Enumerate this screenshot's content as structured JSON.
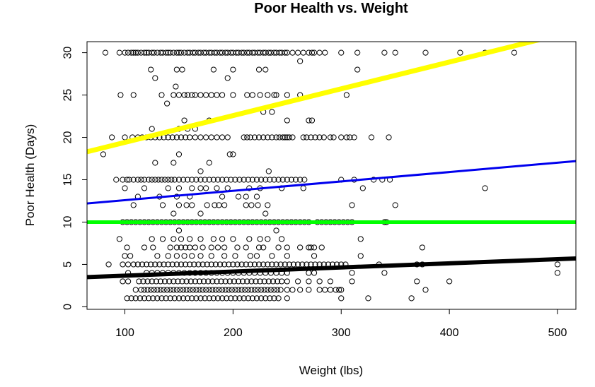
{
  "chart_data": {
    "type": "scatter",
    "title": "Poor Health vs. Weight",
    "xlabel": "Weight (lbs)",
    "ylabel": "Poor Health (Days)",
    "xlim": [
      65,
      517
    ],
    "ylim": [
      -0.3,
      31.3
    ],
    "xticks": [
      100,
      200,
      300,
      400,
      500
    ],
    "yticks": [
      0,
      5,
      10,
      15,
      20,
      25,
      30
    ],
    "grid": false,
    "legend": "none",
    "point_series": [
      {
        "y": 30,
        "x": [
          82,
          95,
          100,
          103,
          106,
          108,
          110,
          112,
          115,
          118,
          120,
          122,
          125,
          127,
          130,
          133,
          135,
          138,
          140,
          142,
          145,
          148,
          150,
          152,
          155,
          158,
          160,
          163,
          165,
          168,
          170,
          173,
          175,
          178,
          180,
          183,
          185,
          188,
          190,
          193,
          195,
          198,
          200,
          203,
          205,
          208,
          210,
          213,
          215,
          218,
          220,
          223,
          225,
          228,
          230,
          233,
          235,
          238,
          240,
          243,
          245,
          248,
          250,
          255,
          260,
          265,
          270,
          273,
          275,
          280,
          285,
          300,
          315,
          340,
          350,
          378,
          410,
          433,
          460
        ]
      },
      {
        "y": 29,
        "x": [
          262
        ]
      },
      {
        "y": 28,
        "x": [
          124,
          148,
          153,
          182,
          200,
          224,
          230,
          315
        ]
      },
      {
        "y": 27,
        "x": [
          128,
          195
        ]
      },
      {
        "y": 26,
        "x": [
          147
        ]
      },
      {
        "y": 25,
        "x": [
          96,
          108,
          134,
          145,
          150,
          155,
          158,
          162,
          165,
          170,
          175,
          180,
          185,
          190,
          200,
          213,
          218,
          225,
          232,
          238,
          240,
          250,
          262,
          305
        ]
      },
      {
        "y": 24,
        "x": [
          139
        ]
      },
      {
        "y": 23,
        "x": [
          228,
          236
        ]
      },
      {
        "y": 22,
        "x": [
          155,
          178,
          250,
          270,
          273
        ]
      },
      {
        "y": 21,
        "x": [
          125,
          150,
          158,
          165
        ]
      },
      {
        "y": 20,
        "x": [
          88,
          100,
          107,
          112,
          116,
          120,
          124,
          128,
          132,
          136,
          140,
          144,
          148,
          152,
          156,
          160,
          165,
          170,
          175,
          180,
          185,
          190,
          195,
          210,
          213,
          216,
          220,
          224,
          228,
          232,
          236,
          240,
          243,
          246,
          248,
          250,
          252,
          255,
          265,
          268,
          272,
          276,
          280,
          284,
          290,
          293,
          300,
          305,
          308,
          312,
          328,
          344
        ]
      },
      {
        "y": 18,
        "x": [
          80,
          150,
          197,
          200
        ]
      },
      {
        "y": 17,
        "x": [
          128,
          145,
          178
        ]
      },
      {
        "y": 16,
        "x": [
          170,
          233
        ]
      },
      {
        "y": 15,
        "x": [
          92,
          98,
          102,
          104,
          108,
          112,
          115,
          118,
          122,
          125,
          128,
          131,
          134,
          137,
          140,
          143,
          146,
          150,
          154,
          158,
          162,
          166,
          170,
          174,
          178,
          182,
          186,
          190,
          194,
          198,
          202,
          206,
          210,
          214,
          218,
          222,
          226,
          230,
          234,
          238,
          242,
          246,
          250,
          254,
          258,
          262,
          266,
          300,
          312,
          330,
          338,
          345
        ]
      },
      {
        "y": 14,
        "x": [
          100,
          118,
          140,
          150,
          162,
          170,
          175,
          185,
          195,
          215,
          225,
          245,
          265,
          320,
          433
        ]
      },
      {
        "y": 13,
        "x": [
          112,
          132,
          148,
          160,
          190,
          205,
          212,
          222
        ]
      },
      {
        "y": 12,
        "x": [
          108,
          135,
          150,
          157,
          162,
          176,
          183,
          187,
          192,
          212,
          217,
          223,
          232,
          310,
          350
        ]
      },
      {
        "y": 11,
        "x": [
          145,
          170,
          230
        ]
      },
      {
        "y": 10,
        "x": [
          98,
          102,
          106,
          110,
          114,
          118,
          122,
          126,
          130,
          134,
          138,
          142,
          146,
          150,
          154,
          158,
          162,
          166,
          170,
          174,
          178,
          182,
          186,
          190,
          194,
          198,
          202,
          206,
          210,
          214,
          218,
          222,
          226,
          230,
          234,
          238,
          242,
          246,
          250,
          254,
          258,
          262,
          266,
          270,
          278,
          282,
          286,
          290,
          294,
          298,
          302,
          306,
          310,
          340,
          342
        ]
      },
      {
        "y": 9,
        "x": [
          150,
          240
        ]
      },
      {
        "y": 8,
        "x": [
          95,
          125,
          135,
          145,
          152,
          160,
          170,
          182,
          190,
          200,
          215,
          225,
          232,
          245,
          318
        ]
      },
      {
        "y": 7,
        "x": [
          102,
          118,
          126,
          142,
          148,
          152,
          156,
          160,
          165,
          172,
          180,
          186,
          192,
          204,
          212,
          224,
          228,
          242,
          250,
          262,
          270,
          272,
          275,
          282,
          375
        ]
      },
      {
        "y": 6,
        "x": [
          100,
          105,
          130,
          140,
          148,
          155,
          162,
          170,
          180,
          192,
          202,
          216,
          222,
          236,
          250,
          275,
          318
        ]
      },
      {
        "y": 5,
        "x": [
          85,
          98,
          103,
          108,
          112,
          116,
          120,
          124,
          128,
          132,
          136,
          140,
          144,
          148,
          152,
          156,
          160,
          164,
          168,
          172,
          176,
          180,
          184,
          188,
          192,
          196,
          200,
          204,
          208,
          212,
          216,
          220,
          224,
          228,
          232,
          236,
          240,
          244,
          248,
          252,
          256,
          260,
          264,
          268,
          272,
          276,
          280,
          284,
          288,
          292,
          296,
          300,
          304,
          335,
          370,
          375,
          500
        ]
      },
      {
        "y": 4,
        "x": [
          103,
          120,
          125,
          130,
          135,
          140,
          145,
          150,
          155,
          160,
          165,
          170,
          175,
          180,
          185,
          190,
          195,
          200,
          205,
          210,
          215,
          220,
          225,
          230,
          235,
          240,
          245,
          250,
          270,
          275,
          310,
          340,
          500
        ]
      },
      {
        "y": 3,
        "x": [
          98,
          103,
          113,
          117,
          121,
          125,
          129,
          133,
          137,
          141,
          145,
          149,
          153,
          157,
          161,
          165,
          169,
          173,
          177,
          181,
          185,
          189,
          193,
          197,
          201,
          205,
          209,
          213,
          217,
          221,
          225,
          229,
          233,
          237,
          241,
          245,
          250,
          260,
          270,
          280,
          290,
          310,
          370,
          400
        ]
      },
      {
        "y": 2,
        "x": [
          110,
          115,
          118,
          121,
          124,
          127,
          130,
          133,
          136,
          139,
          142,
          145,
          148,
          151,
          154,
          157,
          160,
          163,
          166,
          169,
          172,
          175,
          178,
          181,
          184,
          187,
          190,
          193,
          196,
          199,
          202,
          205,
          208,
          211,
          214,
          217,
          220,
          223,
          226,
          229,
          232,
          235,
          238,
          241,
          244,
          250,
          255,
          262,
          270,
          280,
          285,
          290,
          295,
          298,
          300,
          378
        ]
      },
      {
        "y": 1,
        "x": [
          102,
          106,
          110,
          114,
          118,
          122,
          126,
          130,
          134,
          138,
          142,
          146,
          150,
          154,
          158,
          162,
          166,
          170,
          174,
          178,
          182,
          186,
          190,
          194,
          198,
          202,
          206,
          210,
          214,
          218,
          222,
          226,
          230,
          234,
          238,
          242,
          250,
          300,
          325,
          365
        ]
      },
      {
        "y": 0,
        "x": []
      }
    ],
    "lines": [
      {
        "color": "#ffff00",
        "width": 7,
        "x": [
          65,
          517
        ],
        "y": [
          18.3,
          32.6
        ]
      },
      {
        "color": "#0000ee",
        "width": 3,
        "x": [
          65,
          517
        ],
        "y": [
          12.2,
          17.2
        ]
      },
      {
        "color": "#00ff00",
        "width": 5,
        "x": [
          65,
          517
        ],
        "y": [
          10.0,
          10.0
        ]
      },
      {
        "color": "#000000",
        "width": 6,
        "x": [
          65,
          517
        ],
        "y": [
          3.5,
          5.7
        ]
      }
    ]
  }
}
